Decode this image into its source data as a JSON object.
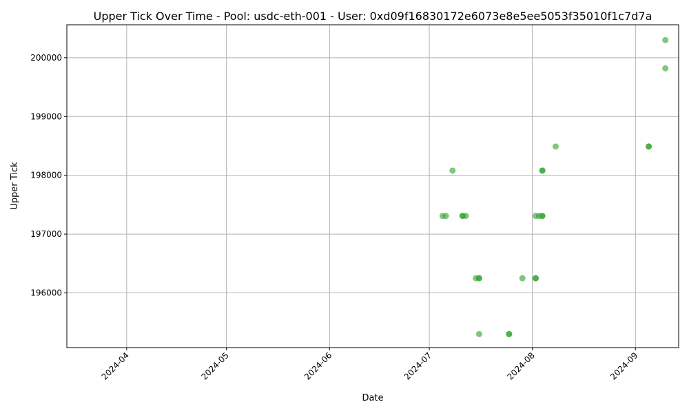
{
  "chart_data": {
    "type": "scatter",
    "title": "Upper Tick Over Time - Pool: usdc-eth-001 - User: 0xd09f16830172e6073e8e5ee5053f35010f1c7d7a",
    "xlabel": "Date",
    "ylabel": "Upper Tick",
    "x_ticks": [
      "2024-04",
      "2024-05",
      "2024-06",
      "2024-07",
      "2024-08",
      "2024-09"
    ],
    "y_ticks": [
      196000,
      197000,
      198000,
      199000,
      200000
    ],
    "xlim": [
      "2024-03-14",
      "2024-09-14"
    ],
    "ylim": [
      195070,
      200560
    ],
    "grid": true,
    "marker_color": "#2ca02c",
    "marker_alpha": 0.6,
    "points": [
      {
        "x": "2024-07-05",
        "y": 197310
      },
      {
        "x": "2024-07-06",
        "y": 197310
      },
      {
        "x": "2024-07-08",
        "y": 198080
      },
      {
        "x": "2024-07-11",
        "y": 197310
      },
      {
        "x": "2024-07-11",
        "y": 197310
      },
      {
        "x": "2024-07-12",
        "y": 197310
      },
      {
        "x": "2024-07-15",
        "y": 196250
      },
      {
        "x": "2024-07-16",
        "y": 196250
      },
      {
        "x": "2024-07-16",
        "y": 196250
      },
      {
        "x": "2024-07-16",
        "y": 195300
      },
      {
        "x": "2024-07-25",
        "y": 195300
      },
      {
        "x": "2024-07-25",
        "y": 195300
      },
      {
        "x": "2024-07-29",
        "y": 196250
      },
      {
        "x": "2024-08-02",
        "y": 196250
      },
      {
        "x": "2024-08-02",
        "y": 196250
      },
      {
        "x": "2024-08-02",
        "y": 197310
      },
      {
        "x": "2024-08-03",
        "y": 197310
      },
      {
        "x": "2024-08-04",
        "y": 197310
      },
      {
        "x": "2024-08-04",
        "y": 197310
      },
      {
        "x": "2024-08-04",
        "y": 198080
      },
      {
        "x": "2024-08-04",
        "y": 198080
      },
      {
        "x": "2024-08-08",
        "y": 198490
      },
      {
        "x": "2024-09-05",
        "y": 198490
      },
      {
        "x": "2024-09-05",
        "y": 198490
      },
      {
        "x": "2024-09-10",
        "y": 200300
      },
      {
        "x": "2024-09-10",
        "y": 199820
      }
    ]
  }
}
